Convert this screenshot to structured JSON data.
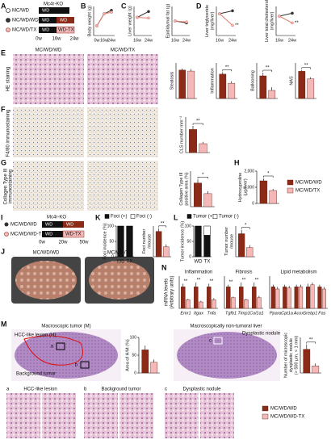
{
  "panel_letters": [
    "A",
    "B",
    "C",
    "D",
    "E",
    "F",
    "G",
    "H",
    "I",
    "J",
    "K",
    "L",
    "M",
    "N"
  ],
  "colors": [
    "#8b2a17",
    "#f4b8b8"
  ],
  "texts": {
    "a_header": "Mc4r-KO",
    "a_groups": [
      "MC/WD",
      "MC/WD/WD",
      "MC/WD/TX"
    ],
    "a_segments": [
      "WD",
      "WD",
      "WD",
      "WD",
      "WD-TX"
    ],
    "a_times": [
      "0w",
      "16w",
      "24w"
    ],
    "e_side": "HE staining",
    "f_side": "F4/80 immunostaining",
    "g_side": [
      "Collagen Type III",
      "immunostaining"
    ],
    "img_heads": [
      "MC/WD/WD",
      "MC/WD/TX"
    ],
    "i_header": "Mc4r-KO",
    "i_groups": [
      "MC/WD/WD",
      "MC/WD/WD-TX"
    ],
    "i_segments": [
      "WD",
      "WD",
      "WD",
      "WD-TX"
    ],
    "i_times": [
      "0w",
      "20w",
      "50w"
    ],
    "j_captions": [
      "MC/WD/WD",
      "MC/WD/TX"
    ],
    "n_ylabel": [
      "mRNA levels",
      "(Arbitrary units)"
    ],
    "m_left_title": "Macroscopic tumor (M)",
    "m_hcc": "HCC-like lesion (H)",
    "m_bg": "Background tumor",
    "m_right_title": "Macroscopically non-tumoral liver",
    "m_dn": "Dysplastic nodule",
    "m_letters": [
      "a",
      "b",
      "c"
    ],
    "m_bottom": [
      "HCC-like lesion",
      "Background tumor",
      "Dysplastic nodule"
    ]
  },
  "legend_h": [
    {
      "name": "MC/WD/WD",
      "color": "#8b2a17"
    },
    {
      "name": "MC/WD/TX",
      "color": "#f4b8b8"
    }
  ],
  "legend_m": [
    {
      "name": "MC/WD/WD",
      "color": "#8b2a17"
    },
    {
      "name": "MC/WD/WD-TX",
      "color": "#f4b8b8"
    }
  ],
  "charts": [
    {
      "type": "line",
      "ylabel": "Body weight (g)",
      "categories": [
        "0w",
        "16w",
        "24w"
      ],
      "ylim": [
        0,
        60
      ],
      "series": [
        {
          "color": "#333333",
          "values": [
            20,
            45,
            52
          ]
        },
        {
          "color": "#e07a6a",
          "values": [
            20,
            45,
            48
          ]
        }
      ]
    },
    {
      "type": "line",
      "ylabel": "Liver weight (g)",
      "categories": [
        "16w",
        "24w"
      ],
      "ylim": [
        0,
        4
      ],
      "series": [
        {
          "color": "#333333",
          "values": [
            2.5,
            3.3
          ]
        },
        {
          "color": "#e07a6a",
          "values": [
            2.5,
            2.4
          ]
        }
      ]
    },
    {
      "type": "line",
      "ylabel": "Epididymal fat (g)",
      "categories": [
        "16w",
        "24w"
      ],
      "ylim": [
        0,
        3
      ],
      "series": [
        {
          "color": "#333333",
          "values": [
            1.5,
            1.3
          ]
        },
        {
          "color": "#e07a6a",
          "values": [
            1.5,
            1.4
          ]
        }
      ]
    },
    {
      "type": "line",
      "ylabel": [
        "Liver triglyceride",
        "(mg/liver)"
      ],
      "categories": [
        "16w",
        "24w"
      ],
      "ylim": [
        0,
        200
      ],
      "sig": "**",
      "series": [
        {
          "color": "#333333",
          "values": [
            150,
            170
          ]
        },
        {
          "color": "#e07a6a",
          "values": [
            150,
            70
          ]
        }
      ]
    },
    {
      "type": "line",
      "ylabel": [
        "Liver total cholesterol",
        "(mg/liver)"
      ],
      "categories": [
        "16w",
        "24w"
      ],
      "ylim": [
        0,
        30
      ],
      "sig": "**",
      "series": [
        {
          "color": "#333333",
          "values": [
            20,
            23
          ]
        },
        {
          "color": "#e07a6a",
          "values": [
            20,
            13
          ]
        }
      ]
    },
    {
      "type": "bar",
      "ylabel": "Steatosis",
      "values": [
        2.8,
        2.7
      ],
      "errors": [
        0.15,
        0.2
      ],
      "ylim": [
        0,
        3.5
      ]
    },
    {
      "type": "bar",
      "ylabel": "Inflammation",
      "values": [
        2.4,
        1.5
      ],
      "errors": [
        0.2,
        0.2
      ],
      "ylim": [
        0,
        3.5
      ],
      "sig": "**"
    },
    {
      "type": "bar",
      "ylabel": "Ballooning",
      "values": [
        1.4,
        0.5
      ],
      "errors": [
        0.2,
        0.2
      ],
      "ylim": [
        0,
        2.2
      ],
      "sig": "**"
    },
    {
      "type": "bar",
      "ylabel": "NAS",
      "values": [
        6.5,
        4.7
      ],
      "errors": [
        0.3,
        0.4
      ],
      "ylim": [
        0,
        8.5
      ],
      "sig": "**"
    },
    {
      "type": "bar",
      "ylabel": "CLS number mm⁻²",
      "values": [
        13,
        5
      ],
      "errors": [
        2,
        1
      ],
      "ylim": [
        0,
        20
      ],
      "sig": "**"
    },
    {
      "type": "bar",
      "ylabel": [
        "Collagen Type III",
        "positive area (%)"
      ],
      "values": [
        4,
        2.2
      ],
      "errors": [
        0.6,
        0.4
      ],
      "ylim": [
        0,
        6
      ],
      "sig": "*"
    },
    {
      "type": "bar",
      "ylabel": [
        "Hydroxyproline",
        "(µg/liver)"
      ],
      "values": [
        1400,
        800
      ],
      "errors": [
        150,
        100
      ],
      "ylim": [
        0,
        2000
      ],
      "sig": "*",
      "yticks": [
        0,
        {
          "value": 1000,
          "label": "1,000"
        },
        {
          "value": 2000,
          "label": "2,000"
        }
      ]
    },
    {
      "type": "stacked",
      "ylabel": "Foci incidence (%)",
      "categories": [
        "WD",
        "TX"
      ],
      "ylim": [
        0,
        100
      ],
      "yticks": [
        0,
        50,
        100
      ],
      "series": [
        {
          "name": "Foci (+)",
          "color": "#111111",
          "values": [
            100,
            100
          ]
        },
        {
          "name": "Foci (-)",
          "color": "#ffffff",
          "values": [
            0,
            0
          ]
        }
      ]
    },
    {
      "type": "bar",
      "ylabel": [
        "Foci number",
        "/mouse"
      ],
      "values": [
        3.3,
        1.3
      ],
      "errors": [
        0.4,
        0.3
      ],
      "ylim": [
        0,
        4
      ],
      "sig": "**"
    },
    {
      "type": "stacked",
      "ylabel": "Tumor incidence (%)",
      "categories": [
        "WD",
        "TX"
      ],
      "ylim": [
        0,
        100
      ],
      "yticks": [
        0,
        50,
        100
      ],
      "series": [
        {
          "name": "Tumor (+)",
          "color": "#111111",
          "values": [
            100,
            70
          ]
        },
        {
          "name": "Tumor (-)",
          "color": "#ffffff",
          "values": [
            0,
            30
          ]
        }
      ]
    },
    {
      "type": "bar",
      "ylabel": [
        "Tumor number",
        "/mouse"
      ],
      "values": [
        3,
        1.2
      ],
      "errors": [
        0.5,
        0.3
      ],
      "ylim": [
        0,
        4
      ],
      "sig": "*"
    },
    {
      "type": "grouped",
      "title": "Inflammation",
      "categories": [
        "Emr1",
        "Itgax",
        "Tnfa"
      ],
      "ylim": [
        0,
        1.5
      ],
      "sig": [
        "**",
        "**",
        "**"
      ],
      "series": [
        {
          "values": [
            1,
            1,
            1
          ],
          "errors": [
            0.15,
            0.2,
            0.15
          ]
        },
        {
          "values": [
            0.4,
            0.3,
            0.4
          ],
          "errors": [
            0.05,
            0.05,
            0.08
          ]
        }
      ]
    },
    {
      "type": "grouped",
      "title": "Fibrosis",
      "categories": [
        "Tgfb1",
        "Timp1",
        "Col1a1"
      ],
      "ylim": [
        0,
        1.5
      ],
      "sig": [
        "**",
        "**",
        "**"
      ],
      "series": [
        {
          "values": [
            1,
            1,
            1
          ],
          "errors": [
            0.1,
            0.2,
            0.2
          ]
        },
        {
          "values": [
            0.5,
            0.4,
            0.5
          ],
          "errors": [
            0.05,
            0.05,
            0.08
          ]
        }
      ]
    },
    {
      "type": "grouped",
      "title": "Lipid metabolism",
      "categories": [
        "Ppara",
        "Cpt1a",
        "Acox",
        "Srebp1",
        "Fas"
      ],
      "ylim": [
        0,
        1.5
      ],
      "series": [
        {
          "values": [
            1,
            1,
            1,
            1,
            1
          ],
          "errors": [
            0.1,
            0.1,
            0.1,
            0.15,
            0.1
          ]
        },
        {
          "values": [
            0.9,
            0.95,
            1.0,
            1.1,
            0.9
          ],
          "errors": [
            0.1,
            0.1,
            0.1,
            0.1,
            0.1
          ]
        }
      ]
    },
    {
      "type": "bar",
      "ylabel": [
        "Area of H/M (%)"
      ],
      "values": [
        65,
        30
      ],
      "errors": [
        12,
        8
      ],
      "ylim": [
        0,
        100
      ],
      "yticks": [
        0,
        50,
        100
      ]
    },
    {
      "type": "bar",
      "ylabel": [
        "Number of microscopic",
        "dysplastic nodule",
        "(> 500 µm, < 1 mm)"
      ],
      "values": [
        2,
        0.6
      ],
      "errors": [
        0.4,
        0.2
      ],
      "ylim": [
        0,
        3
      ],
      "sig": "**"
    }
  ]
}
